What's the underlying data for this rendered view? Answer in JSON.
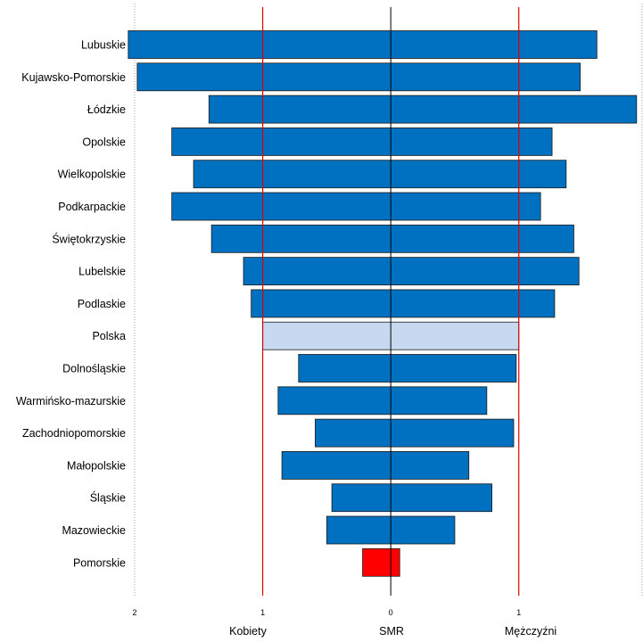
{
  "colors": {
    "bar": "#0070C0",
    "reference_bar": "#C6D9F1",
    "highlight_bar": "#FF0000",
    "reference_line": "#E00000",
    "center_line": "#000000",
    "grid_dotted": "#A0A0A0"
  },
  "chart_data": {
    "type": "bar",
    "orientation": "horizontal",
    "layout": "back-to-back (women extend left, men extend right of SMR = 0)",
    "categories": [
      "Lubuskie",
      "Kujawsko-Pomorskie",
      "Łódzkie",
      "Opolskie",
      "Wielkopolskie",
      "Podkarpackie",
      "Świętokrzyskie",
      "Lubelskie",
      "Podlaskie",
      "Polska",
      "Dolnośląskie",
      "Warmińsko-mazurskie",
      "Zachodniopomorskie",
      "Małopolskie",
      "Śląskie",
      "Mazowieckie",
      "Pomorskie"
    ],
    "series": [
      {
        "name": "Kobiety",
        "values": [
          2.05,
          1.98,
          1.42,
          1.71,
          1.54,
          1.71,
          1.4,
          1.15,
          1.09,
          1.0,
          0.72,
          0.88,
          0.59,
          0.85,
          0.46,
          0.5,
          0.22
        ]
      },
      {
        "name": "Mężczyźni",
        "values": [
          1.61,
          1.48,
          1.92,
          1.26,
          1.37,
          1.17,
          1.43,
          1.47,
          1.28,
          1.0,
          0.98,
          0.75,
          0.96,
          0.61,
          0.79,
          0.5,
          0.07
        ]
      }
    ],
    "reference_category": "Polska",
    "highlight_category": "Pomorskie",
    "xlim": [
      -2.0,
      1.97
    ],
    "x_ticks": [
      {
        "value": -2,
        "label": "2"
      },
      {
        "value": -1,
        "label": "1"
      },
      {
        "value": 0,
        "label": "0"
      },
      {
        "value": 1,
        "label": "1"
      }
    ],
    "reference_lines": [
      -1,
      1
    ],
    "center_line": 0,
    "axis_labels": {
      "left": "Kobiety",
      "center": "SMR",
      "right": "Mężczyźni"
    },
    "grid": false,
    "legend": "none"
  }
}
